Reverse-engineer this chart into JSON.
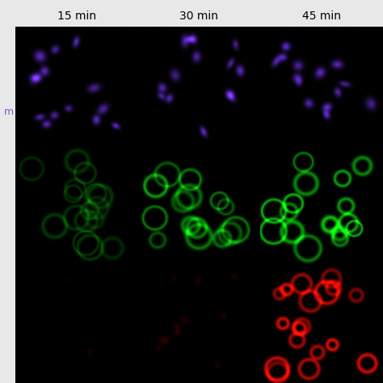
{
  "title_labels": [
    "15 min",
    "30 min",
    "45 min"
  ],
  "row_label": "m",
  "grid_rows": 3,
  "grid_cols": 3,
  "fig_width": 4.74,
  "fig_height": 4.74,
  "background_color": "#000000",
  "outer_bg": "#e8e8e8",
  "title_fontsize": 10,
  "label_fontsize": 9,
  "grid_color": "#aaaaaa",
  "grid_linewidth": 0.5
}
